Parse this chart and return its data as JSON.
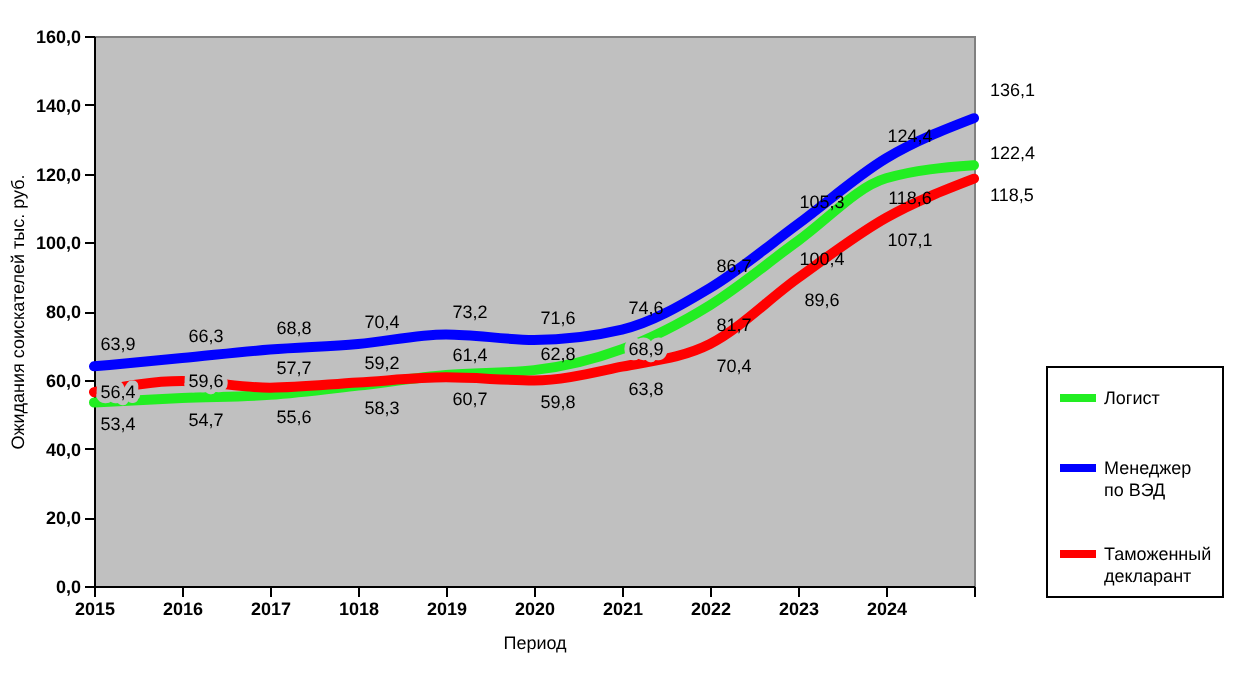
{
  "chart_data": {
    "type": "line",
    "xlabel": "Период",
    "ylabel": "Ожидания соискателей тыс. руб.",
    "categories": [
      "2015",
      "2016",
      "2017",
      "1018",
      "2019",
      "2020",
      "2021",
      "2022",
      "2023",
      "2024",
      null
    ],
    "series": [
      {
        "name": "Логист",
        "color": "#22ee22",
        "values": [
          53.4,
          54.7,
          55.6,
          58.3,
          61.4,
          62.8,
          68.9,
          81.7,
          100.4,
          118.6,
          122.4
        ],
        "value_labels": [
          "53,4",
          "54,7",
          "55,6",
          "58,3",
          "61,4",
          "62,8",
          "68,9",
          "81,7",
          "100,4",
          "118,6",
          "122,4"
        ]
      },
      {
        "name": "Менеджер по ВЭД",
        "color": "#0000ff",
        "values": [
          63.9,
          66.3,
          68.8,
          70.4,
          73.2,
          71.6,
          74.6,
          86.7,
          105.3,
          124.4,
          136.1
        ],
        "value_labels": [
          "63,9",
          "66,3",
          "68,8",
          "70,4",
          "73,2",
          "71,6",
          "74,6",
          "86,7",
          "105,3",
          "124,4",
          "136,1"
        ]
      },
      {
        "name": "Таможенный декларант",
        "color": "#ff0000",
        "values": [
          56.4,
          59.6,
          57.7,
          59.2,
          60.7,
          59.8,
          63.8,
          70.4,
          89.6,
          107.1,
          118.5
        ],
        "value_labels": [
          "56,4",
          "59,6",
          "57,7",
          "59,2",
          "60,7",
          "59,8",
          "63,8",
          "70,4",
          "89,6",
          "107,1",
          "118,5"
        ]
      }
    ],
    "ylim": [
      0,
      160
    ],
    "yticks": [
      {
        "value": 0,
        "label": "0,0"
      },
      {
        "value": 20,
        "label": "20,0"
      },
      {
        "value": 40,
        "label": "40,0"
      },
      {
        "value": 60,
        "label": "60,0"
      },
      {
        "value": 80,
        "label": "80,0"
      },
      {
        "value": 100,
        "label": "100,0"
      },
      {
        "value": 120,
        "label": "120,0"
      },
      {
        "value": 140,
        "label": "140,0"
      },
      {
        "value": 160,
        "label": "160,0"
      }
    ],
    "grid": false,
    "legend": "right",
    "marker": "none",
    "line_style": "solid"
  }
}
